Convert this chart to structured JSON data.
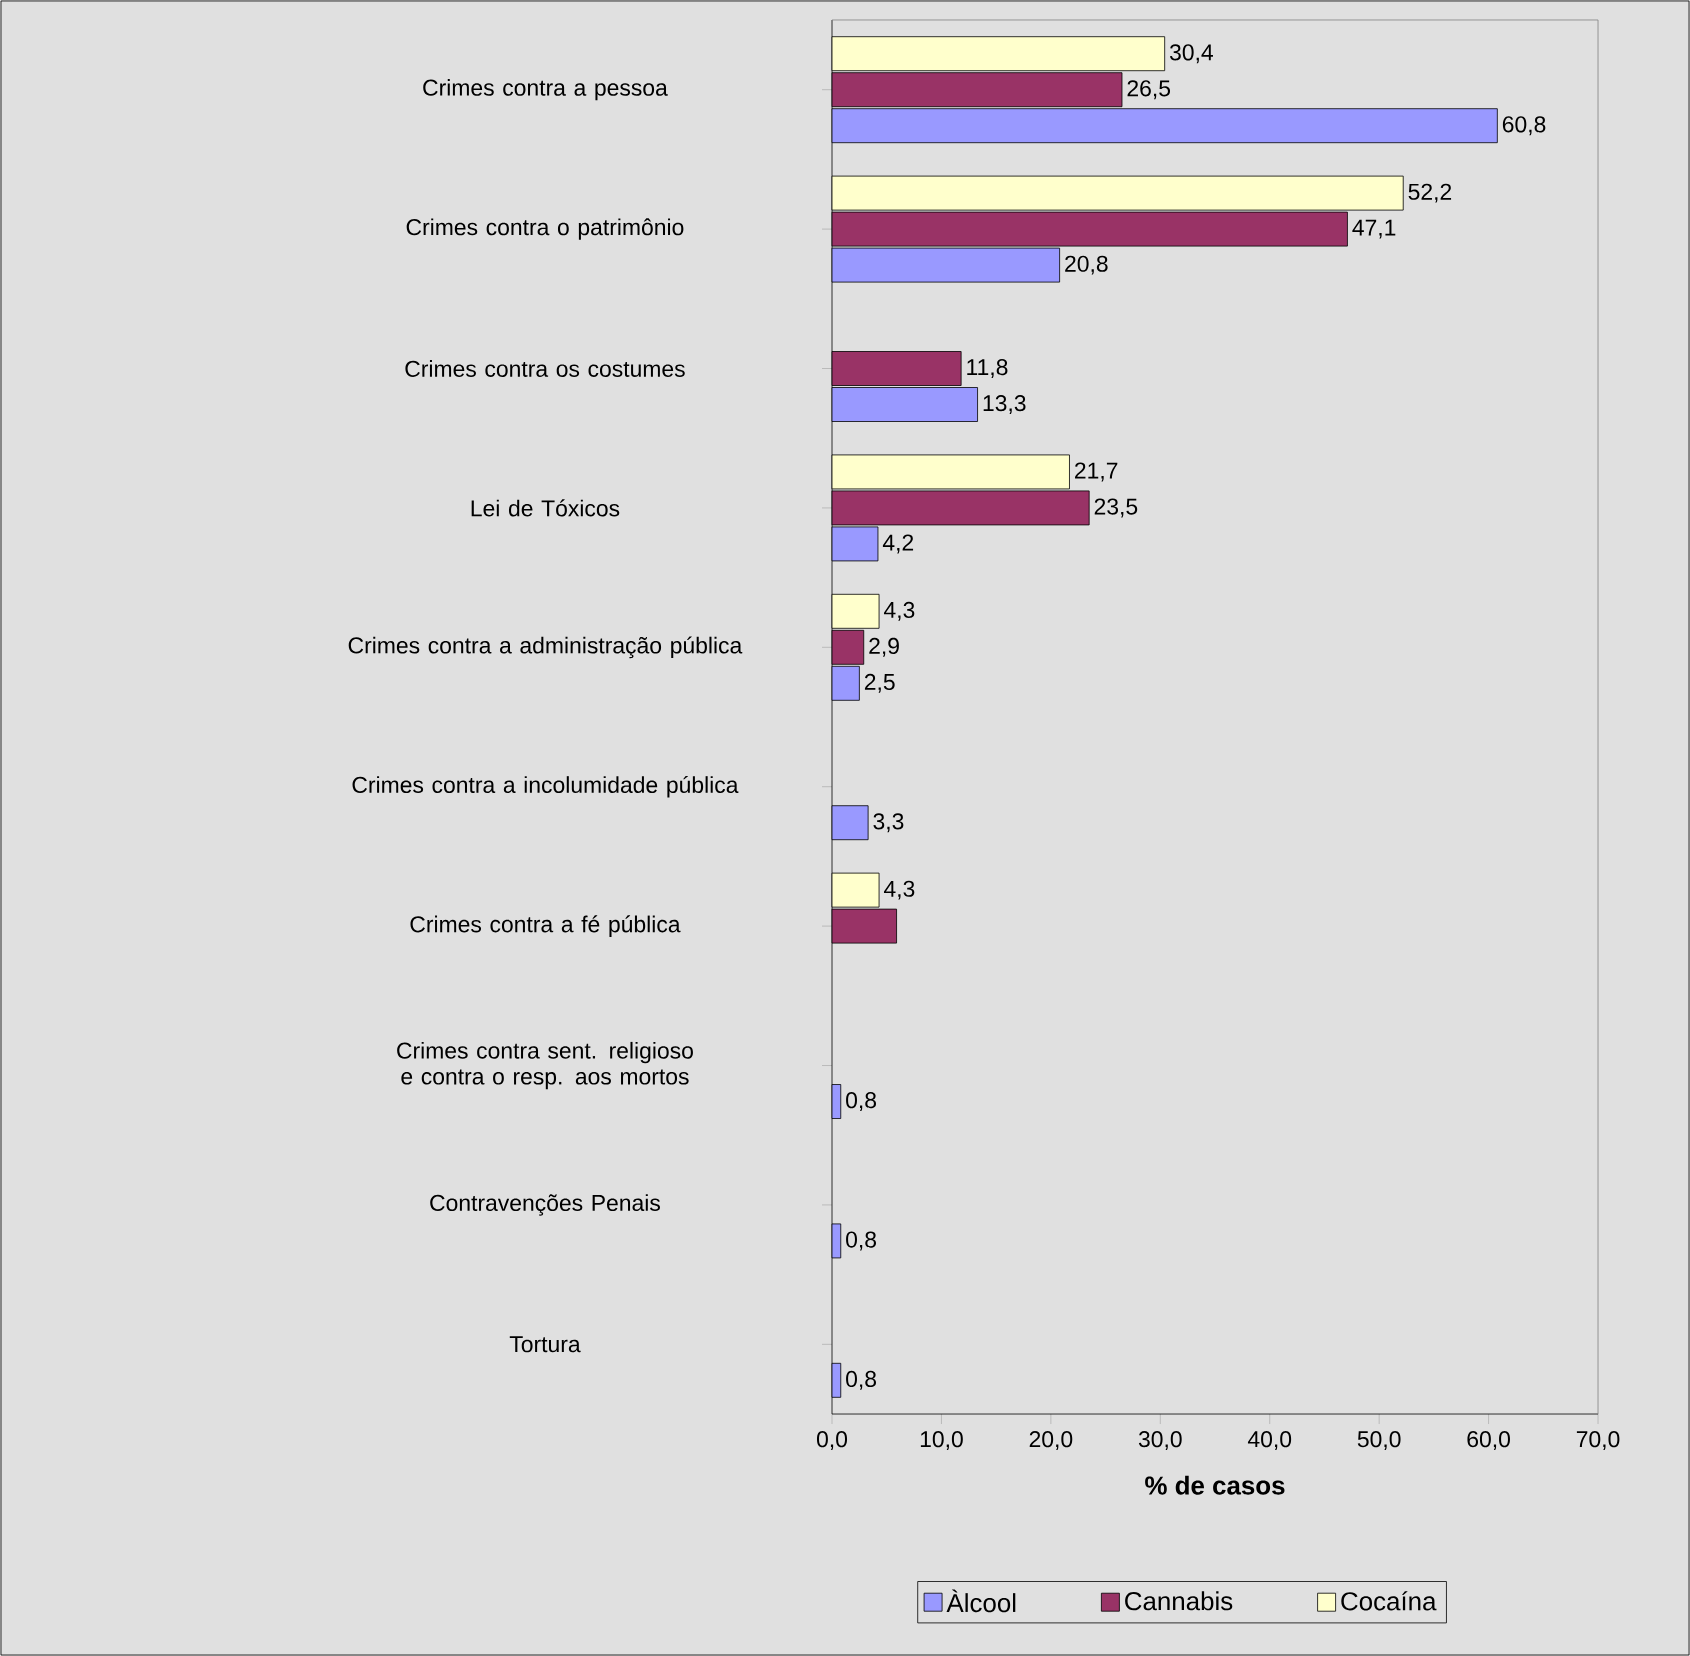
{
  "chart_data": {
    "type": "bar",
    "orientation": "horizontal",
    "xlabel": "% de casos",
    "legend": "bottom",
    "grid": false,
    "categories": [
      "Crimes contra a pessoa",
      "Crimes contra o patrimônio",
      "Crimes contra os costumes",
      "Lei de Tóxicos",
      "Crimes contra a administração pública",
      "Crimes contra a incolumidade pública",
      "Crimes contra a fé pública",
      "Crimes contra sent. religioso e contra o resp. aos mortos",
      "Contravenções Penais",
      "Tortura"
    ],
    "series": [
      {
        "name": "Àlcool",
        "color": "#9999ff",
        "values": [
          60.8,
          20.8,
          13.3,
          4.2,
          2.5,
          3.3,
          null,
          0.8,
          0.8,
          0.8
        ],
        "value_labels": [
          "60,8",
          "20,8",
          "13,3",
          "4,2",
          "2,5",
          "3,3",
          null,
          "0,8",
          "0,8",
          "0,8"
        ]
      },
      {
        "name": "Cannabis",
        "color": "#993366",
        "values": [
          26.5,
          47.1,
          11.8,
          23.5,
          2.9,
          null,
          5.9,
          null,
          null,
          null
        ],
        "value_labels": [
          "26,5",
          "47,1",
          "11,8",
          "23,5",
          "2,9",
          null,
          null,
          null,
          null,
          null
        ]
      },
      {
        "name": "Cocaína",
        "color": "#ffffcc",
        "values": [
          30.4,
          52.2,
          null,
          21.7,
          4.3,
          null,
          4.3,
          null,
          null,
          null
        ],
        "value_labels": [
          "30,4",
          "52,2",
          null,
          "21,7",
          "4,3",
          null,
          "4,3",
          null,
          null,
          null
        ]
      }
    ],
    "xlim": [
      0,
      70
    ],
    "xticks": [
      {
        "value": 0,
        "label": "0,0"
      },
      {
        "value": 10,
        "label": "10,0"
      },
      {
        "value": 20,
        "label": "20,0"
      },
      {
        "value": 30,
        "label": "30,0"
      },
      {
        "value": 40,
        "label": "40,0"
      },
      {
        "value": 50,
        "label": "50,0"
      },
      {
        "value": 60,
        "label": "60,0"
      },
      {
        "value": 70,
        "label": "70,0"
      }
    ]
  }
}
